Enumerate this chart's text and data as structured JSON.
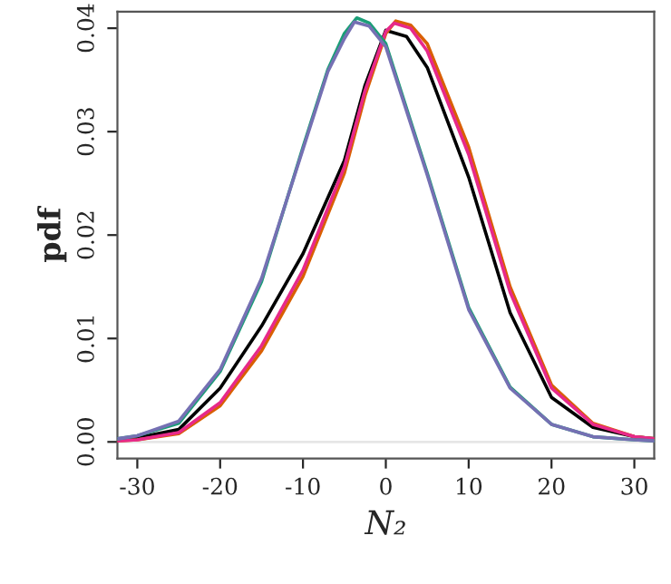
{
  "chart_data": {
    "type": "line",
    "xlabel": "N₂",
    "ylabel": "pdf",
    "xlim": [
      -32.4,
      32.4
    ],
    "ylim": [
      -0.0016,
      0.0416
    ],
    "xticks": [
      -30,
      -20,
      -10,
      0,
      10,
      20,
      30
    ],
    "yticks": [
      {
        "value": 0,
        "label": "0.00"
      },
      {
        "value": 0.01,
        "label": "0.01"
      },
      {
        "value": 0.02,
        "label": "0.02"
      },
      {
        "value": 0.03,
        "label": "0.03"
      },
      {
        "value": 0.04,
        "label": "0.04"
      }
    ],
    "grid": false,
    "line_style": "solid",
    "marker": "none",
    "ref_lines": [
      {
        "axis": "y",
        "value": 0,
        "color": "#e6e6e6"
      }
    ],
    "series": [
      {
        "color": "#000000",
        "x": [
          -32.4,
          -30,
          -25,
          -20,
          -15,
          -10,
          -5,
          -2.5,
          0,
          2.5,
          5,
          10,
          15,
          20,
          25,
          30,
          32.4
        ],
        "values": [
          0.0002,
          0.0004,
          0.0012,
          0.0052,
          0.0112,
          0.0182,
          0.0272,
          0.0345,
          0.0398,
          0.0392,
          0.0362,
          0.0256,
          0.0125,
          0.0043,
          0.0014,
          0.0005,
          0.0003
        ]
      },
      {
        "color": "#d95f02",
        "x": [
          -32.4,
          -30,
          -25,
          -20,
          -15,
          -10,
          -5,
          -2.5,
          0,
          1.2,
          3,
          5,
          10,
          15,
          20,
          25,
          30,
          32.4
        ],
        "values": [
          0.0001,
          0.0002,
          0.0008,
          0.0035,
          0.0088,
          0.016,
          0.026,
          0.0335,
          0.0395,
          0.0407,
          0.0403,
          0.0385,
          0.0285,
          0.015,
          0.0055,
          0.0018,
          0.0005,
          0.0003
        ]
      },
      {
        "color": "#e7298a",
        "x": [
          -32.4,
          -30,
          -25,
          -20,
          -15,
          -10,
          -5,
          -2.5,
          0,
          1,
          3,
          5,
          10,
          15,
          20,
          25,
          30,
          32.4
        ],
        "values": [
          0.0001,
          0.0002,
          0.0009,
          0.0038,
          0.0093,
          0.0166,
          0.0266,
          0.034,
          0.0397,
          0.0405,
          0.04,
          0.0378,
          0.0278,
          0.0145,
          0.0052,
          0.0017,
          0.0005,
          0.0003
        ]
      },
      {
        "color": "#1b9e77",
        "x": [
          -32.4,
          -30,
          -25,
          -20,
          -15,
          -10,
          -7,
          -5,
          -3.5,
          -2,
          0,
          5,
          10,
          15,
          20,
          25,
          30,
          32.4
        ],
        "values": [
          0.0003,
          0.0006,
          0.0018,
          0.0068,
          0.0155,
          0.0285,
          0.036,
          0.0395,
          0.041,
          0.0405,
          0.0385,
          0.026,
          0.013,
          0.0053,
          0.0017,
          0.0005,
          0.0002,
          0.0001
        ]
      },
      {
        "color": "#7570b3",
        "x": [
          -32.4,
          -30,
          -25,
          -20,
          -15,
          -10,
          -7,
          -5,
          -3.8,
          -2,
          0,
          5,
          10,
          15,
          20,
          25,
          30,
          32.4
        ],
        "values": [
          0.0003,
          0.0006,
          0.002,
          0.007,
          0.0158,
          0.0283,
          0.0358,
          0.039,
          0.0406,
          0.0402,
          0.0382,
          0.0258,
          0.0128,
          0.0052,
          0.0017,
          0.0005,
          0.0002,
          0.0001
        ]
      }
    ]
  }
}
